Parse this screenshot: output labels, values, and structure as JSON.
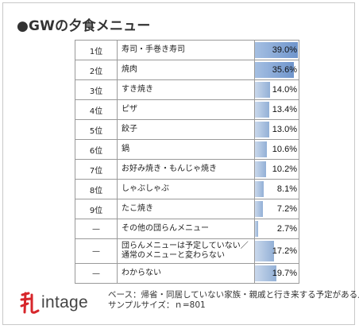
{
  "title": "●GWの夕食メニュー",
  "chart_data": {
    "type": "bar",
    "title": "●GWの夕食メニュー",
    "ranks": [
      "1位",
      "2位",
      "3位",
      "4位",
      "5位",
      "6位",
      "7位",
      "8位",
      "9位",
      "—",
      "—",
      "—"
    ],
    "categories": [
      "寿司・手巻き寿司",
      "焼肉",
      "すき焼き",
      "ピザ",
      "餃子",
      "鍋",
      "お好み焼き・もんじゃ焼き",
      "しゃぶしゃぶ",
      "たこ焼き",
      "その他の団らんメニュー",
      "団らんメニューは予定していない／\n通常のメニューと変わらない",
      "わからない"
    ],
    "values": [
      39.0,
      35.6,
      14.0,
      13.4,
      13.0,
      10.6,
      10.2,
      8.1,
      7.2,
      2.7,
      17.2,
      19.7
    ],
    "value_labels": [
      "39.0%",
      "35.6%",
      "14.0%",
      "13.4%",
      "13.0%",
      "10.6%",
      "10.2%",
      "8.1%",
      "7.2%",
      "2.7%",
      "17.2%",
      "19.7%"
    ],
    "xlim": [
      0,
      40
    ],
    "unit": "%"
  },
  "footer": {
    "logo_text": "intage",
    "note_line1": "ベース：帰省・同居していない家族・親戚と行き来する予定がある人",
    "note_line2": "サンプルサイズ：ｎ=801"
  },
  "colors": {
    "bar": "#93b0d6",
    "bar_highlight": "#6f95cc",
    "logo_red": "#d7262b"
  }
}
